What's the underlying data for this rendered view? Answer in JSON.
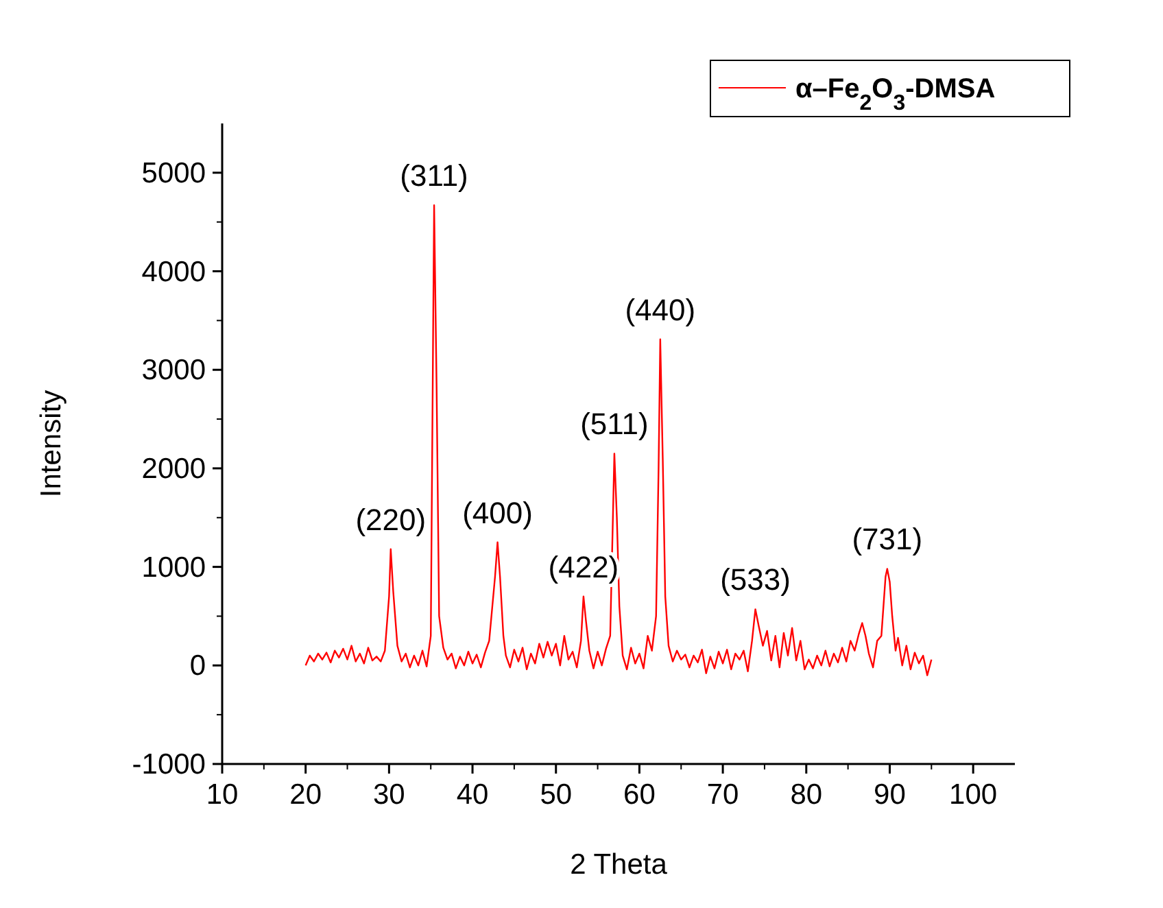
{
  "chart_data": {
    "type": "line",
    "xlabel": "2 Theta",
    "ylabel": "Intensity",
    "xlim": [
      10,
      105
    ],
    "xticks": [
      10,
      20,
      30,
      40,
      50,
      60,
      70,
      80,
      90,
      100
    ],
    "ylim": [
      -1000,
      5500
    ],
    "yticks": [
      -1000,
      0,
      1000,
      2000,
      3000,
      4000,
      5000
    ],
    "legend": "top right",
    "grid": false,
    "series": [
      {
        "name": "α–Fe$_{2}$O$_{3}$-DMSA",
        "color": "#ff0000",
        "x": [
          20,
          20.5,
          21,
          21.5,
          22,
          22.5,
          23,
          23.5,
          24,
          24.5,
          25,
          25.5,
          26,
          26.5,
          27,
          27.5,
          28,
          28.5,
          29,
          29.5,
          30,
          30.2,
          30.5,
          31,
          31.5,
          32,
          32.5,
          33,
          33.5,
          34,
          34.5,
          35,
          35.2,
          35.4,
          35.7,
          36,
          36.5,
          37,
          37.5,
          38,
          38.5,
          39,
          39.5,
          40,
          40.5,
          41,
          41.5,
          42,
          42.7,
          43,
          43.3,
          43.7,
          44,
          44.5,
          45,
          45.5,
          46,
          46.5,
          47,
          47.5,
          48,
          48.5,
          49,
          49.5,
          50,
          50.5,
          51,
          51.5,
          52,
          52.5,
          53,
          53.3,
          53.6,
          54,
          54.5,
          55,
          55.5,
          56,
          56.5,
          56.8,
          57,
          57.3,
          57.6,
          58,
          58.5,
          59,
          59.5,
          60,
          60.5,
          61,
          61.5,
          62,
          62.3,
          62.5,
          62.8,
          63.1,
          63.5,
          64,
          64.5,
          65,
          65.5,
          66,
          66.5,
          67,
          67.5,
          68,
          68.5,
          69,
          69.5,
          70,
          70.5,
          71,
          71.5,
          72,
          72.5,
          73,
          73.5,
          73.9,
          74.3,
          74.8,
          75.3,
          75.8,
          76.3,
          76.8,
          77.3,
          77.8,
          78.3,
          78.8,
          79.3,
          79.8,
          80.3,
          80.8,
          81.3,
          81.8,
          82.3,
          82.8,
          83.3,
          83.8,
          84.3,
          84.8,
          85.3,
          85.8,
          86.3,
          86.7,
          87.1,
          87.5,
          88,
          88.5,
          89,
          89.5,
          89.7,
          90,
          90.3,
          90.7,
          91,
          91.5,
          92,
          92.5,
          93,
          93.5,
          94,
          94.5,
          95
        ],
        "values": [
          0,
          100,
          40,
          120,
          60,
          130,
          30,
          150,
          80,
          170,
          60,
          200,
          40,
          120,
          20,
          180,
          50,
          90,
          40,
          150,
          700,
          1180,
          750,
          200,
          40,
          120,
          -20,
          100,
          0,
          150,
          -10,
          300,
          2500,
          4670,
          2800,
          500,
          180,
          60,
          120,
          -30,
          90,
          0,
          140,
          20,
          110,
          -20,
          130,
          250,
          900,
          1250,
          900,
          300,
          100,
          -20,
          160,
          40,
          180,
          -40,
          120,
          20,
          220,
          80,
          240,
          100,
          220,
          0,
          300,
          60,
          140,
          -20,
          250,
          700,
          450,
          150,
          -30,
          140,
          0,
          170,
          300,
          1400,
          2150,
          1500,
          600,
          100,
          -40,
          180,
          20,
          120,
          -30,
          300,
          150,
          500,
          2000,
          3310,
          2100,
          700,
          200,
          40,
          150,
          60,
          110,
          -20,
          100,
          30,
          160,
          -80,
          90,
          -30,
          140,
          20,
          160,
          -40,
          120,
          60,
          150,
          -60,
          250,
          570,
          400,
          200,
          350,
          50,
          300,
          -20,
          330,
          100,
          380,
          50,
          250,
          -40,
          60,
          -30,
          100,
          0,
          150,
          -10,
          120,
          30,
          180,
          40,
          250,
          150,
          320,
          430,
          300,
          120,
          -20,
          250,
          300,
          900,
          980,
          850,
          500,
          150,
          280,
          0,
          200,
          -40,
          130,
          20,
          100,
          -100,
          60
        ]
      }
    ],
    "annotations": [
      {
        "text": "(220)",
        "x": 30.2,
        "y": 1180
      },
      {
        "text": "(311)",
        "x": 35.4,
        "y": 4670
      },
      {
        "text": "(400)",
        "x": 43,
        "y": 1250
      },
      {
        "text": "(422)",
        "x": 53.3,
        "y": 700
      },
      {
        "text": "(511)",
        "x": 57,
        "y": 2150
      },
      {
        "text": "(440)",
        "x": 62.5,
        "y": 3310
      },
      {
        "text": "(533)",
        "x": 73.9,
        "y": 570
      },
      {
        "text": "(731)",
        "x": 89.7,
        "y": 980
      }
    ]
  }
}
